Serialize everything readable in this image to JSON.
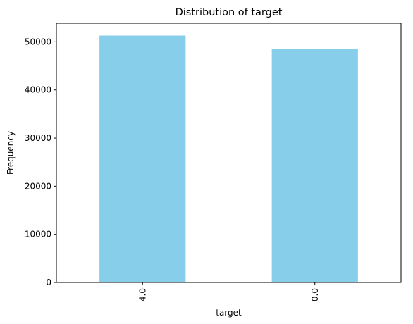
{
  "chart_data": {
    "type": "bar",
    "title": "Distribution of target",
    "xlabel": "target",
    "ylabel": "Frequency",
    "categories": [
      "4.0",
      "0.0"
    ],
    "values": [
      51300,
      48600
    ],
    "ylim": [
      0,
      53865
    ],
    "yticks": [
      0,
      10000,
      20000,
      30000,
      40000,
      50000
    ],
    "bar_color": "#87ceeb",
    "grid": false,
    "legend": "none"
  }
}
